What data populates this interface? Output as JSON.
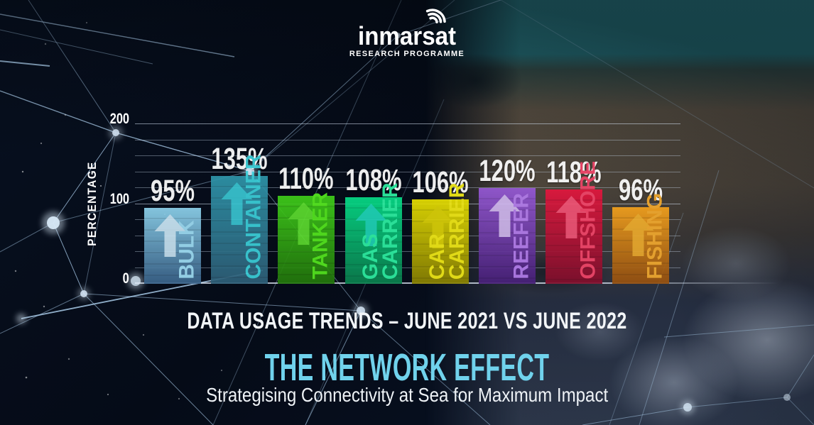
{
  "logo": {
    "brand": "inmarsat",
    "tagline": "RESEARCH PROGRAMME",
    "icon": "signal-waves-icon"
  },
  "chart_data": {
    "type": "bar",
    "title": "DATA USAGE TRENDS – JUNE 2021 VS JUNE 2022",
    "xlabel": "",
    "ylabel": "PERCENTAGE",
    "ylim": [
      0,
      200
    ],
    "yticks": [
      0,
      100,
      200
    ],
    "gridline_step": 20,
    "grid": true,
    "legend_position": "none",
    "categories": [
      "BULK",
      "CONTAINER",
      "TANKER",
      "GAS CARRIER",
      "CAR CARRIER",
      "REEFER",
      "OFFSHORE",
      "FISHING"
    ],
    "values": [
      95,
      135,
      110,
      108,
      106,
      120,
      118,
      96
    ],
    "value_labels": [
      "95%",
      "135%",
      "110%",
      "108%",
      "106%",
      "120%",
      "118%",
      "96%"
    ],
    "bar_styles": [
      {
        "top": "#8fd4ee",
        "bottom": "#3a638a",
        "text": "#9fdef5",
        "arrow": "#d8effa"
      },
      {
        "top": "#2f96ab",
        "bottom": "#2f5f78",
        "text": "#3cd0da",
        "arrow": "#3cd0da"
      },
      {
        "top": "#40cf1a",
        "bottom": "#23770c",
        "text": "#55e81e",
        "arrow": "#63e232"
      },
      {
        "top": "#07dd88",
        "bottom": "#0b7f4e",
        "text": "#2ef0a2",
        "arrow": "#22d8c2"
      },
      {
        "top": "#e8e002",
        "bottom": "#8a8202",
        "text": "#f2ea16",
        "arrow": "#ded408"
      },
      {
        "top": "#9659d6",
        "bottom": "#482079",
        "text": "#b37cec",
        "arrow": "#dcc8f6"
      },
      {
        "top": "#e3163e",
        "bottom": "#820f2c",
        "text": "#f24468",
        "arrow": "#f75c7e"
      },
      {
        "top": "#f4a21d",
        "bottom": "#96500f",
        "text": "#f2a92e",
        "arrow": "#f0b030"
      }
    ]
  },
  "captions": {
    "chart_title": "DATA USAGE TRENDS – JUNE 2021 VS JUNE 2022",
    "headline": "THE NETWORK EFFECT",
    "headline_color": "#70d2ec",
    "subheadline": "Strategising Connectivity at Sea for Maximum Impact"
  }
}
